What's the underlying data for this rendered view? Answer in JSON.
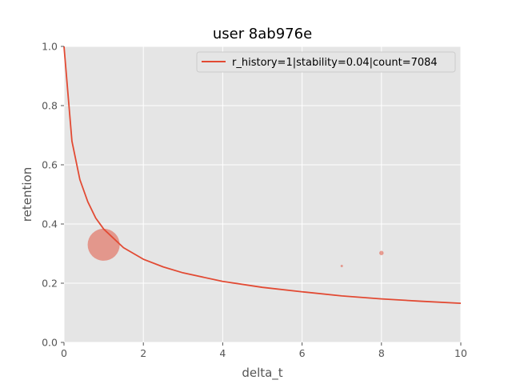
{
  "chart_data": {
    "type": "scatter",
    "title": "user 8ab976e",
    "xlabel": "delta_t",
    "ylabel": "retention",
    "xlim": [
      0,
      10
    ],
    "ylim": [
      0,
      1
    ],
    "xticks": [
      "0",
      "2",
      "4",
      "6",
      "8",
      "10"
    ],
    "yticks": [
      "0.0",
      "0.2",
      "0.4",
      "0.6",
      "0.8",
      "1.0"
    ],
    "grid": true,
    "legend_position": "top-right",
    "curve": {
      "name": "r_history=1|stability=0.04|count=7084",
      "color": "#e24a33",
      "x": [
        0,
        0.2,
        0.4,
        0.6,
        0.8,
        1.0,
        1.5,
        2,
        2.5,
        3,
        4,
        5,
        6,
        7,
        8,
        9,
        10
      ],
      "y": [
        1.0,
        0.68,
        0.55,
        0.475,
        0.42,
        0.383,
        0.32,
        0.281,
        0.255,
        0.235,
        0.206,
        0.186,
        0.171,
        0.157,
        0.147,
        0.139,
        0.132
      ]
    },
    "points": {
      "color": "#e24a33",
      "x": [
        1,
        7,
        8
      ],
      "y": [
        0.33,
        0.258,
        0.302
      ],
      "size": [
        7084,
        40,
        130
      ]
    }
  }
}
